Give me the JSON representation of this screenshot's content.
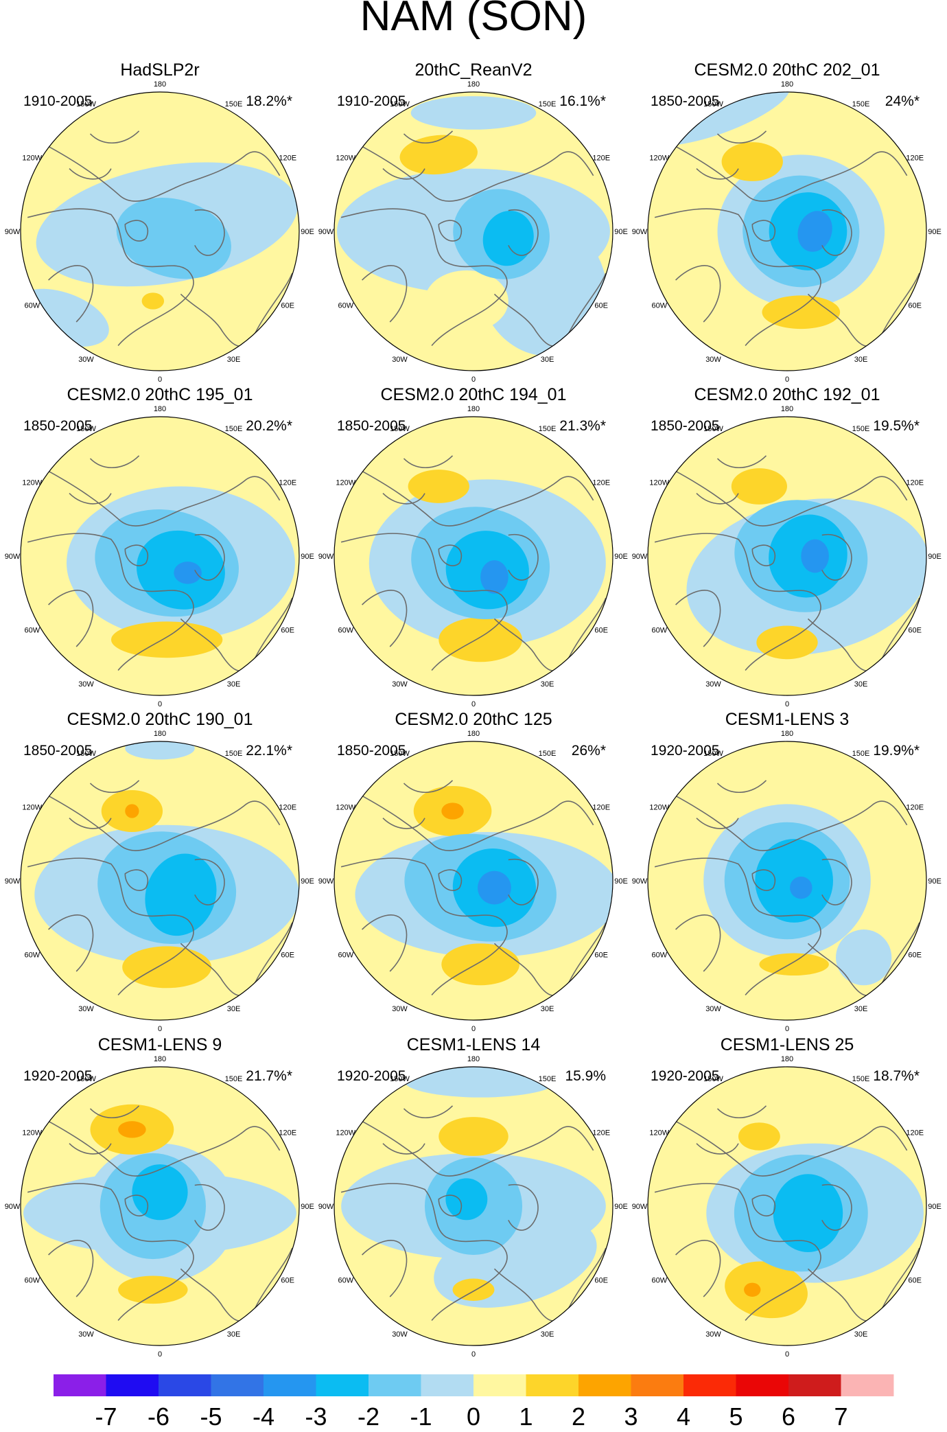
{
  "title": "NAM (SON)",
  "longitude_labels": [
    "180",
    "150E",
    "120E",
    "90E",
    "60E",
    "30E",
    "0",
    "30W",
    "60W",
    "90W",
    "120W",
    "150W"
  ],
  "panels": [
    {
      "title": "HadSLP2r",
      "period": "1910-2005",
      "variance": "18.2%*"
    },
    {
      "title": "20thC_ReanV2",
      "period": "1910-2005",
      "variance": "16.1%*"
    },
    {
      "title": "CESM2.0 20thC 202_01",
      "period": "1850-2005",
      "variance": "24%*"
    },
    {
      "title": "CESM2.0 20thC 195_01",
      "period": "1850-2005",
      "variance": "20.2%*"
    },
    {
      "title": "CESM2.0 20thC 194_01",
      "period": "1850-2005",
      "variance": "21.3%*"
    },
    {
      "title": "CESM2.0 20thC 192_01",
      "period": "1850-2005",
      "variance": "19.5%*"
    },
    {
      "title": "CESM2.0 20thC 190_01",
      "period": "1850-2005",
      "variance": "22.1%*"
    },
    {
      "title": "CESM2.0 20thC 125",
      "period": "1850-2005",
      "variance": "26%*"
    },
    {
      "title": "CESM1-LENS 3",
      "period": "1920-2005",
      "variance": "19.9%*"
    },
    {
      "title": "CESM1-LENS 9",
      "period": "1920-2005",
      "variance": "21.7%*"
    },
    {
      "title": "CESM1-LENS 14",
      "period": "1920-2005",
      "variance": "15.9%"
    },
    {
      "title": "CESM1-LENS 25",
      "period": "1920-2005",
      "variance": "18.7%*"
    }
  ],
  "colorbar": {
    "labels": [
      "-7",
      "-6",
      "-5",
      "-4",
      "-3",
      "-2",
      "-1",
      "0",
      "1",
      "2",
      "3",
      "4",
      "5",
      "6",
      "7"
    ],
    "colors": [
      "#8b1fe8",
      "#1f0cf2",
      "#2a48e6",
      "#3274e6",
      "#2596f0",
      "#0bbcf2",
      "#6ecbf2",
      "#b2dcf2",
      "#fff7a0",
      "#fdd52a",
      "#fda400",
      "#fb7c10",
      "#fb2a06",
      "#ea0606",
      "#cf1c1c",
      "#fbb4b4"
    ]
  },
  "map_colors": {
    "pos1": "#fff7a0",
    "neg1": "#b2dcf2",
    "neg2": "#6ecbf2",
    "neg3": "#0bbcf2",
    "neg4": "#2596f0",
    "pos2": "#fdd52a",
    "pos3": "#fda400",
    "coast": "#6b6b6b"
  }
}
